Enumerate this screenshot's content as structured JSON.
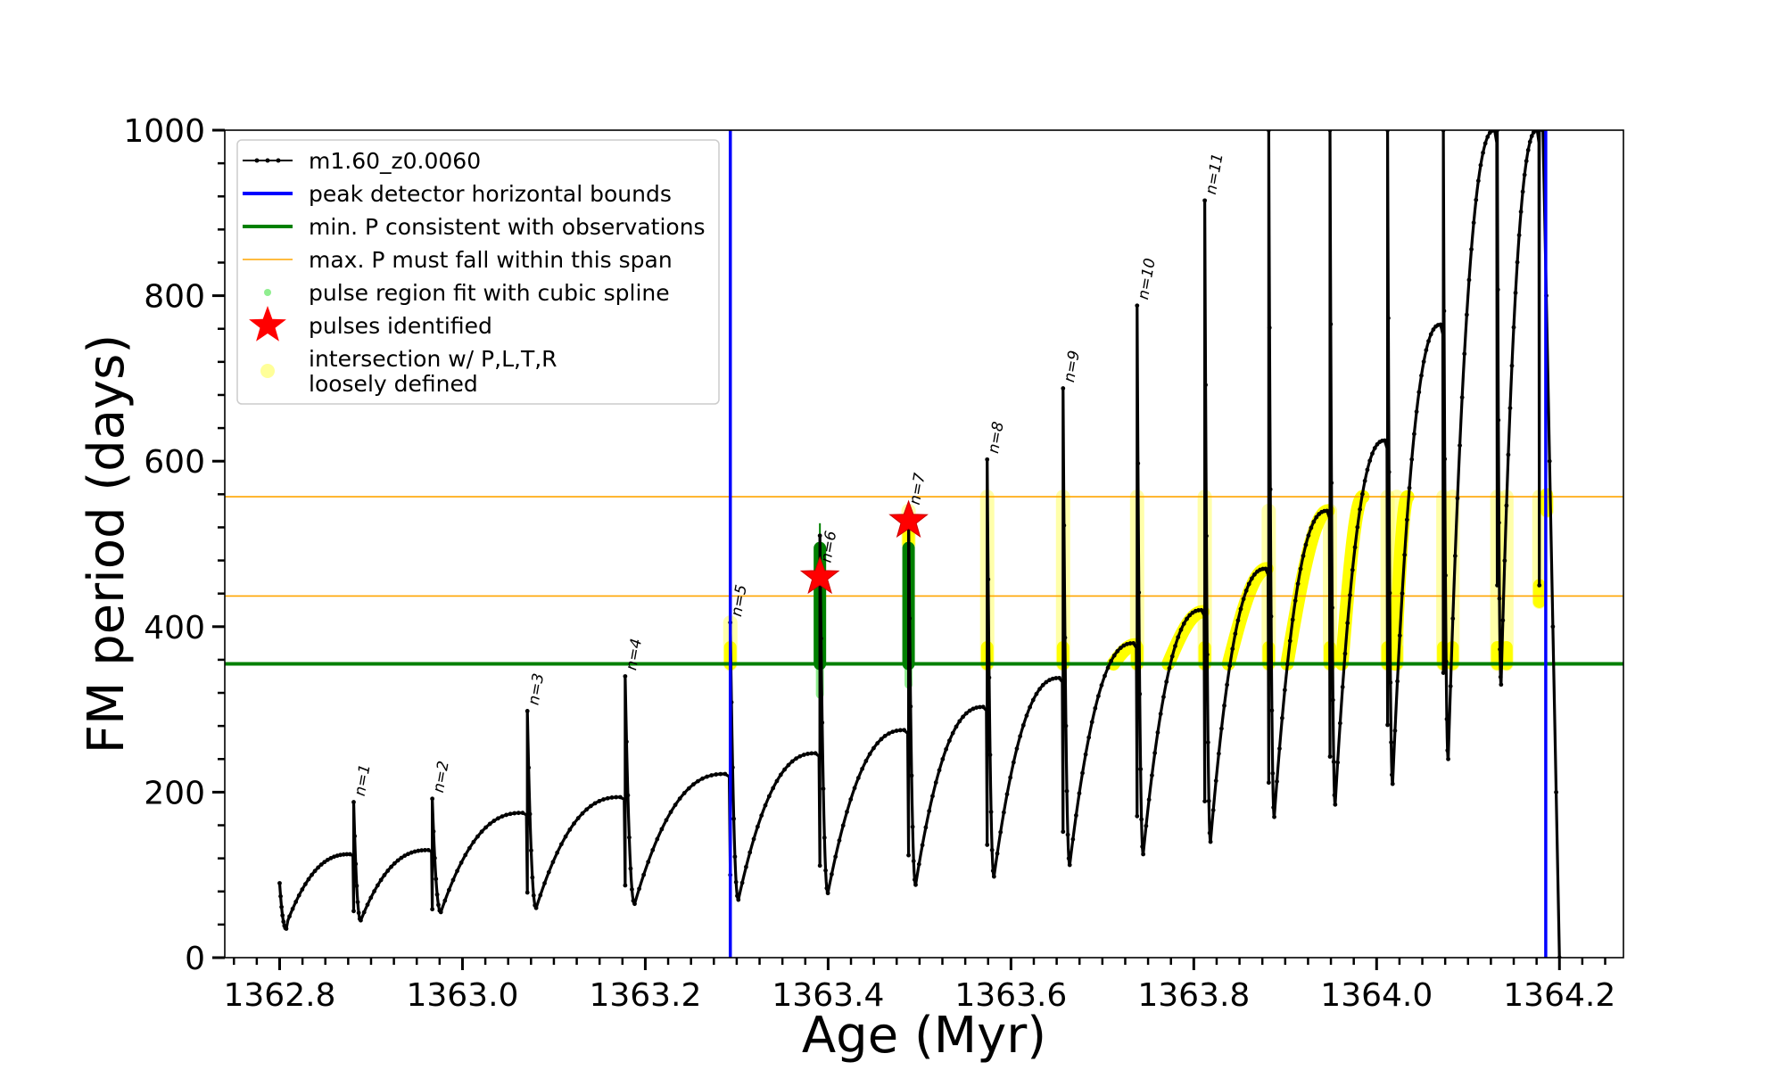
{
  "chart_data": {
    "type": "line",
    "xlabel": "Age (Myr)",
    "ylabel": "FM period (days)",
    "xlim": [
      1362.74,
      1364.27
    ],
    "ylim": [
      0,
      1000
    ],
    "x_ticks": [
      1362.8,
      1363.0,
      1363.2,
      1363.4,
      1363.6,
      1363.8,
      1364.0,
      1364.2
    ],
    "x_tick_labels": [
      "1362.8",
      "1363.0",
      "1363.2",
      "1363.4",
      "1363.6",
      "1363.8",
      "1364.0",
      "1364.2"
    ],
    "y_ticks": [
      0,
      200,
      400,
      600,
      800,
      1000
    ],
    "y_tick_labels": [
      "0",
      "200",
      "400",
      "600",
      "800",
      "1000"
    ],
    "grid": false,
    "legend_position": "top-left",
    "legend": [
      {
        "label": "m1.60_z0.0060",
        "kind": "line-dots",
        "color": "#000000"
      },
      {
        "label": "peak detector horizontal bounds",
        "kind": "line",
        "color": "#0000ff"
      },
      {
        "label": "min. P consistent with observations",
        "kind": "line",
        "color": "#008000"
      },
      {
        "label": "max. P must fall within this span",
        "kind": "thin-line",
        "color": "#ffa500"
      },
      {
        "label": "pulse region fit with cubic spline",
        "kind": "dot",
        "color": "#90ee90"
      },
      {
        "label": "pulses identified",
        "kind": "star",
        "color": "#ff0000"
      },
      {
        "label": "intersection w/ P,L,T,R",
        "label_line2": "loosely defined",
        "kind": "dot",
        "color": "#ffff99"
      }
    ],
    "vertical_lines": [
      {
        "x": 1363.293,
        "color": "#0000ff"
      },
      {
        "x": 1364.185,
        "color": "#0000ff"
      }
    ],
    "horizontal_lines": [
      {
        "y": 355,
        "color": "#008000",
        "width": 4
      },
      {
        "y": 437,
        "color": "#ffa500",
        "width": 1.6
      },
      {
        "y": 557,
        "color": "#ffa500",
        "width": 1.6
      }
    ],
    "series_name": "m1.60_z0.0060",
    "cycles": [
      {
        "start": 1362.8,
        "end": 1362.881,
        "dip_low": 40,
        "rise_to": 125,
        "spike": 188
      },
      {
        "start": 1362.881,
        "end": 1362.967,
        "dip_low": 45,
        "rise_to": 130,
        "spike": 192
      },
      {
        "start": 1362.967,
        "end": 1363.071,
        "dip_low": 55,
        "rise_to": 175,
        "spike": 298
      },
      {
        "start": 1363.071,
        "end": 1363.178,
        "dip_low": 60,
        "rise_to": 194,
        "spike": 340
      },
      {
        "start": 1363.178,
        "end": 1363.293,
        "dip_low": 65,
        "rise_to": 222,
        "spike": 405
      },
      {
        "start": 1363.293,
        "end": 1363.391,
        "dip_low": 70,
        "rise_to": 247,
        "spike": 510
      },
      {
        "start": 1363.391,
        "end": 1363.488,
        "dip_low": 78,
        "rise_to": 275,
        "spike": 540
      },
      {
        "start": 1363.488,
        "end": 1363.574,
        "dip_low": 88,
        "rise_to": 303,
        "spike": 602
      },
      {
        "start": 1363.574,
        "end": 1363.657,
        "dip_low": 98,
        "rise_to": 338,
        "spike": 688
      },
      {
        "start": 1363.657,
        "end": 1363.738,
        "dip_low": 112,
        "rise_to": 380,
        "spike": 788
      },
      {
        "start": 1363.738,
        "end": 1363.812,
        "dip_low": 125,
        "rise_to": 420,
        "spike": 915
      },
      {
        "start": 1363.812,
        "end": 1363.882,
        "dip_low": 140,
        "rise_to": 470,
        "spike": 1000
      },
      {
        "start": 1363.882,
        "end": 1363.949,
        "dip_low": 170,
        "rise_to": 540,
        "spike": 1000
      },
      {
        "start": 1363.949,
        "end": 1364.012,
        "dip_low": 185,
        "rise_to": 625,
        "spike": 1000
      },
      {
        "start": 1364.012,
        "end": 1364.073,
        "dip_low": 210,
        "rise_to": 765,
        "spike": 1000
      },
      {
        "start": 1364.073,
        "end": 1364.132,
        "dip_low": 240,
        "rise_to": 1000,
        "spike": 1000
      },
      {
        "start": 1364.132,
        "end": 1364.178,
        "dip_low": 330,
        "rise_to": 1000,
        "spike": 1000
      }
    ],
    "final_descent": {
      "x_start": 1364.178,
      "x_end": 1364.2,
      "y_end": 0
    },
    "pulse_labels": [
      {
        "text": "n=1",
        "x": 1362.881,
        "y": 188
      },
      {
        "text": "n=2",
        "x": 1362.967,
        "y": 192
      },
      {
        "text": "n=3",
        "x": 1363.071,
        "y": 298
      },
      {
        "text": "n=4",
        "x": 1363.178,
        "y": 340
      },
      {
        "text": "n=5",
        "x": 1363.293,
        "y": 405
      },
      {
        "text": "n=6",
        "x": 1363.391,
        "y": 470
      },
      {
        "text": "n=7",
        "x": 1363.488,
        "y": 540
      },
      {
        "text": "n=8",
        "x": 1363.574,
        "y": 602
      },
      {
        "text": "n=9",
        "x": 1363.657,
        "y": 688
      },
      {
        "text": "n=10",
        "x": 1363.738,
        "y": 788
      },
      {
        "text": "n=11",
        "x": 1363.812,
        "y": 915
      }
    ],
    "green_pulse_regions": [
      {
        "x": 1363.391,
        "y_low": 355,
        "y_high": 495,
        "spline_low": 318
      },
      {
        "x": 1363.488,
        "y_low": 355,
        "y_high": 495,
        "spline_low": 330
      }
    ],
    "identified_pulses": [
      {
        "x": 1363.391,
        "y": 460
      },
      {
        "x": 1363.488,
        "y": 528
      }
    ],
    "yellow_vertical_bands": [
      {
        "x": 1363.293,
        "y_low": 355,
        "y_high": 405
      },
      {
        "x": 1363.488,
        "y_low": 500,
        "y_high": 540
      },
      {
        "x": 1363.574,
        "y_low": 355,
        "y_high": 557
      },
      {
        "x": 1363.657,
        "y_low": 355,
        "y_high": 557
      },
      {
        "x": 1363.738,
        "y_low": 355,
        "y_high": 557
      },
      {
        "x": 1363.812,
        "y_low": 355,
        "y_high": 557
      },
      {
        "x": 1363.882,
        "y_low": 355,
        "y_high": 540
      },
      {
        "x": 1363.949,
        "y_low": 355,
        "y_high": 540
      },
      {
        "x": 1364.012,
        "y_low": 355,
        "y_high": 557
      },
      {
        "x": 1364.022,
        "y_low": 355,
        "y_high": 557
      },
      {
        "x": 1364.073,
        "y_low": 355,
        "y_high": 557
      },
      {
        "x": 1364.083,
        "y_low": 355,
        "y_high": 557
      },
      {
        "x": 1364.132,
        "y_low": 355,
        "y_high": 557
      },
      {
        "x": 1364.142,
        "y_low": 355,
        "y_high": 557
      },
      {
        "x": 1364.178,
        "y_low": 430,
        "y_high": 557
      },
      {
        "x": 1364.186,
        "y_low": 540,
        "y_high": 557
      }
    ],
    "yellow_arcs": [
      {
        "x0": 1363.712,
        "x1": 1363.736,
        "y0": 355,
        "y1": 378
      },
      {
        "x0": 1363.772,
        "x1": 1363.81,
        "y0": 355,
        "y1": 418
      },
      {
        "x0": 1363.838,
        "x1": 1363.88,
        "y0": 355,
        "y1": 470
      },
      {
        "x0": 1363.902,
        "x1": 1363.947,
        "y0": 355,
        "y1": 540
      },
      {
        "x0": 1363.962,
        "x1": 1363.985,
        "y0": 355,
        "y1": 557
      },
      {
        "x0": 1364.02,
        "x1": 1364.034,
        "y0": 355,
        "y1": 557
      }
    ]
  }
}
